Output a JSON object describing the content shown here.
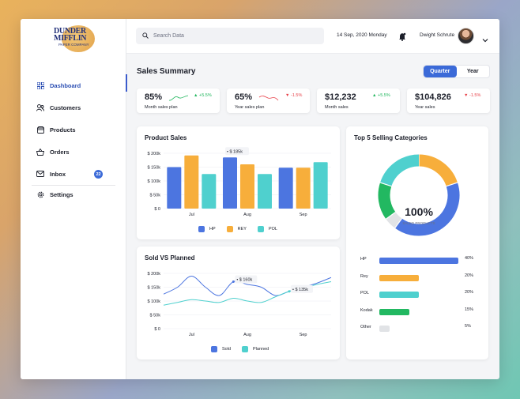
{
  "logo": {
    "line1": "DUNDER",
    "line2": "MIFFLIN",
    "line3": "PAPER COMPANY"
  },
  "sidebar": {
    "items": [
      {
        "label": "Dashboard",
        "icon": "dashboard-icon",
        "active": true
      },
      {
        "label": "Customers",
        "icon": "users-icon"
      },
      {
        "label": "Products",
        "icon": "box-icon"
      },
      {
        "label": "Orders",
        "icon": "basket-icon"
      },
      {
        "label": "Inbox",
        "icon": "mail-icon",
        "badge": "22"
      },
      {
        "label": "Settings",
        "icon": "gear-icon"
      }
    ]
  },
  "header": {
    "search_placeholder": "Search Data",
    "date": "14 Sep, 2020 Monday",
    "user_name": "Dwight Schrute"
  },
  "summary": {
    "title": "Sales Summary",
    "period_options": [
      "Quarter",
      "Year"
    ],
    "selected_period": "Quarter"
  },
  "kpis": [
    {
      "value": "85%",
      "label": "Month sales plan",
      "change": "+5.5%",
      "trend": "up"
    },
    {
      "value": "65%",
      "label": "Year sales plan",
      "change": "-1.5%",
      "trend": "down"
    },
    {
      "value": "$12,232",
      "label": "Month sales",
      "change": "+5.5%",
      "trend": "up"
    },
    {
      "value": "$104,826",
      "label": "Year sales",
      "change": "-1.5%",
      "trend": "down"
    }
  ],
  "colors": {
    "accent": "#3b6ad8",
    "hp": "#4c75e0",
    "rey": "#f7ae3b",
    "pol": "#4fd0ce",
    "kodak": "#22b861",
    "other": "#e1e3e6",
    "up": "#1fb65c",
    "down": "#e8424a"
  },
  "chart_data": [
    {
      "type": "bar",
      "title": "Product Sales",
      "categories": [
        "Jul",
        "Aug",
        "Sep"
      ],
      "series": [
        {
          "name": "HP",
          "values": [
            150,
            185,
            148
          ]
        },
        {
          "name": "REY",
          "values": [
            192,
            160,
            148
          ]
        },
        {
          "name": "POL",
          "values": [
            125,
            125,
            168
          ]
        }
      ],
      "yticks": [
        "$ 200k",
        "$ 150k",
        "$ 100k",
        "$ 50k",
        "$ 0"
      ],
      "ylim": [
        0,
        200
      ],
      "annotation": "$ 185k",
      "legend": "bottom"
    },
    {
      "type": "line",
      "title": "Sold VS Planned",
      "categories": [
        "Jul",
        "Aug",
        "Sep"
      ],
      "x": [
        0,
        1,
        2,
        3,
        4,
        5,
        6,
        7,
        8,
        9,
        10,
        11,
        12
      ],
      "series": [
        {
          "name": "Sold",
          "values": [
            125,
            150,
            190,
            150,
            120,
            170,
            160,
            150,
            120,
            135,
            150,
            165,
            185
          ]
        },
        {
          "name": "Planned",
          "values": [
            85,
            95,
            105,
            100,
            95,
            110,
            100,
            95,
            115,
            135,
            148,
            160,
            170
          ]
        }
      ],
      "yticks": [
        "$ 200k",
        "$ 150k",
        "$ 100k",
        "$ 50k",
        "$ 0"
      ],
      "ylim": [
        0,
        200
      ],
      "annotations": [
        "$ 160k",
        "$ 135k"
      ],
      "legend": "bottom"
    },
    {
      "type": "pie",
      "title": "Top 5 Selling Categories",
      "center_value": "100%",
      "center_label": "SALED PRODUCTS",
      "labels": [
        "HP",
        "Rey",
        "POL",
        "Kodak",
        "Other"
      ],
      "values": [
        40,
        20,
        20,
        15,
        5
      ],
      "pct_labels": [
        "40%",
        "20%",
        "20%",
        "15%",
        "5%"
      ]
    }
  ]
}
